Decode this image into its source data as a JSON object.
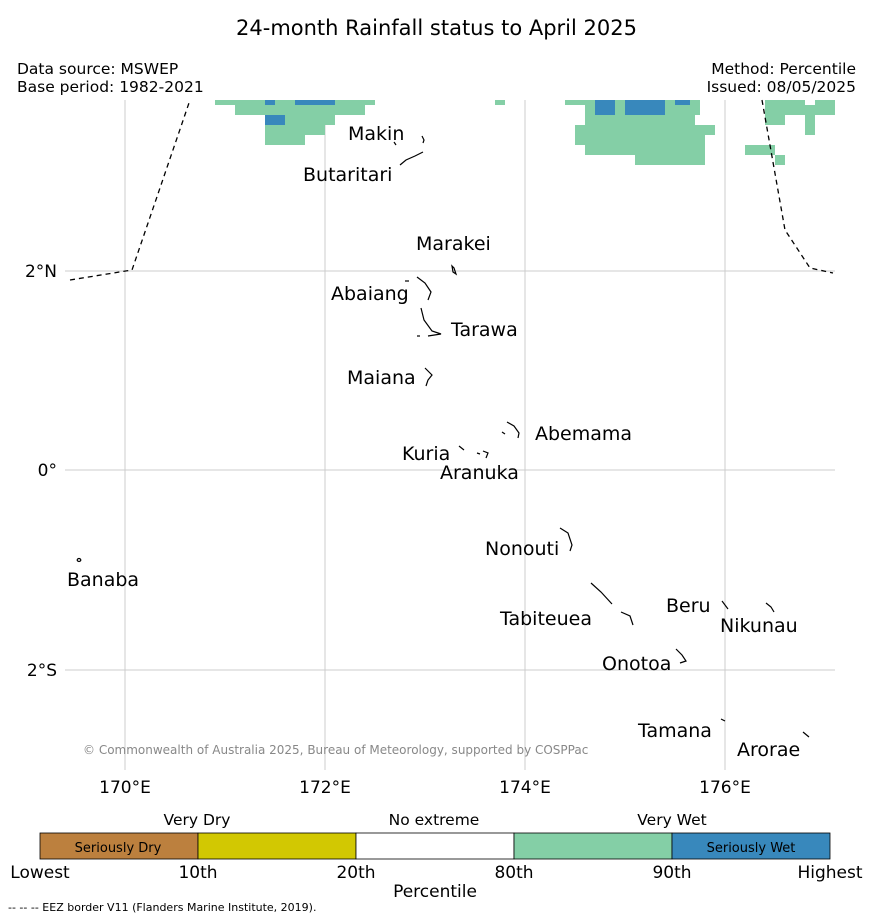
{
  "header": {
    "title": "24-month Rainfall status to April 2025",
    "data_source": "Data source: MSWEP",
    "base_period": "Base period: 1982-2021",
    "method": "Method: Percentile",
    "issued": "Issued: 08/05/2025"
  },
  "map": {
    "lon_labels": [
      "170°E",
      "172°E",
      "174°E",
      "176°E"
    ],
    "lat_labels": [
      "2°N",
      "0°",
      "2°S"
    ],
    "places": [
      "Makin",
      "Butaritari",
      "Marakei",
      "Abaiang",
      "Tarawa",
      "Maiana",
      "Abemama",
      "Kuria",
      "Aranuka",
      "Nonouti",
      "Banaba",
      "Beru",
      "Tabiteuea",
      "Nikunau",
      "Onotoa",
      "Tamana",
      "Arorae"
    ],
    "copyright": "© Commonwealth of Australia 2025, Bureau of Meteorology, supported by COSPPac",
    "colors": {
      "very_wet": "#84cfa6",
      "seriously_wet": "#3888bc",
      "coast": "#000000",
      "grid": "#cccccc"
    }
  },
  "legend": {
    "categories": [
      "Very Dry",
      "No extreme",
      "Very Wet"
    ],
    "segments": [
      {
        "label": "Seriously Dry",
        "color": "#bc803e"
      },
      {
        "label": "",
        "color": "#d2c802"
      },
      {
        "label": "",
        "color": "#ffffff"
      },
      {
        "label": "",
        "color": "#84cfa6"
      },
      {
        "label": "Seriously Wet",
        "color": "#3888bc"
      }
    ],
    "ticks": [
      "Lowest",
      "10th",
      "20th",
      "80th",
      "90th",
      "Highest"
    ],
    "title": "Percentile"
  },
  "footnote": "--  --  -- EEZ border V11 (Flanders Marine Institute, 2019)."
}
